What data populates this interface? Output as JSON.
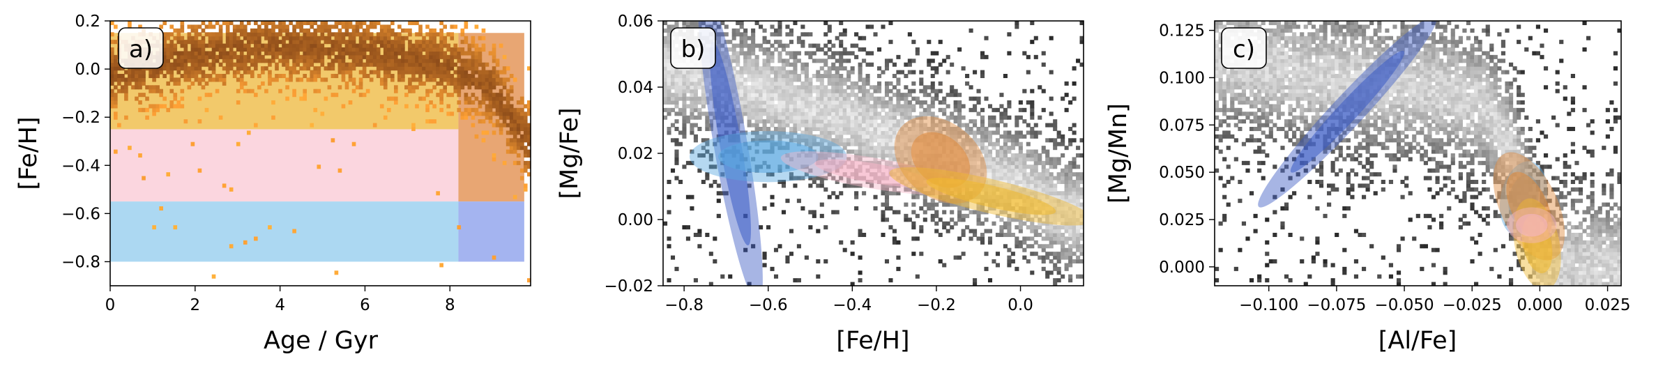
{
  "chart_data": [
    {
      "type": "heatmap",
      "panel_label": "a)",
      "xlabel": "Age / Gyr",
      "ylabel": "[Fe/H]",
      "xlim": [
        0,
        9.9
      ],
      "ylim": [
        -0.9,
        0.2
      ],
      "xticks": [
        "0",
        "2",
        "4",
        "6",
        "8"
      ],
      "yticks": [
        "0.2",
        "0.0",
        "−0.2",
        "−0.4",
        "−0.6",
        "−0.8"
      ],
      "xtick_values": [
        0,
        2,
        4,
        6,
        8
      ],
      "ytick_values": [
        0.2,
        0.0,
        -0.2,
        -0.4,
        -0.6,
        -0.8
      ],
      "grid": false,
      "regions": [
        {
          "color": "#f2c96b",
          "x": [
            0,
            8.2
          ],
          "y": [
            -0.25,
            0.15
          ]
        },
        {
          "color": "#fbd6df",
          "x": [
            0,
            8.2
          ],
          "y": [
            -0.55,
            -0.25
          ]
        },
        {
          "color": "#acd8f2",
          "x": [
            0,
            8.2
          ],
          "y": [
            -0.8,
            -0.55
          ]
        },
        {
          "color": "#e8a673",
          "x": [
            8.2,
            9.75
          ],
          "y": [
            -0.55,
            0.15
          ]
        },
        {
          "color": "#a4b4f0",
          "x": [
            8.2,
            9.75
          ],
          "y": [
            -0.8,
            -0.55
          ]
        }
      ],
      "density_ridge": [
        {
          "x": 0.0,
          "y": -0.02
        },
        {
          "x": 2.0,
          "y": 0.06
        },
        {
          "x": 4.0,
          "y": 0.1
        },
        {
          "x": 6.0,
          "y": 0.08
        },
        {
          "x": 8.0,
          "y": 0.02
        },
        {
          "x": 9.0,
          "y": -0.08
        },
        {
          "x": 9.8,
          "y": -0.3
        }
      ]
    },
    {
      "type": "heatmap",
      "panel_label": "b)",
      "xlabel": "[Fe/H]",
      "ylabel": "[Mg/Fe]",
      "xlim": [
        -0.85,
        0.15
      ],
      "ylim": [
        -0.02,
        0.06
      ],
      "xticks": [
        "−0.8",
        "−0.6",
        "−0.4",
        "−0.2",
        "0.0"
      ],
      "yticks": [
        "0.06",
        "0.04",
        "0.02",
        "0.00",
        "−0.02"
      ],
      "xtick_values": [
        -0.8,
        -0.6,
        -0.4,
        -0.2,
        0.0
      ],
      "ytick_values": [
        0.06,
        0.04,
        0.02,
        0.0,
        -0.02
      ],
      "grid": false,
      "density_ridge": [
        {
          "x": -0.8,
          "y": 0.045
        },
        {
          "x": -0.6,
          "y": 0.038
        },
        {
          "x": -0.4,
          "y": 0.03
        },
        {
          "x": -0.2,
          "y": 0.02
        },
        {
          "x": 0.0,
          "y": 0.01
        },
        {
          "x": 0.12,
          "y": 0.001
        }
      ],
      "populations": [
        {
          "color": "#3b5bc4",
          "center": [
            -0.69,
            0.023
          ],
          "sx": 0.035,
          "sy": 0.022,
          "rho": -0.85
        },
        {
          "color": "#5aa8e0",
          "center": [
            -0.6,
            0.019
          ],
          "sx": 0.085,
          "sy": 0.0035,
          "rho": 0.0
        },
        {
          "color": "#f5b6c8",
          "center": [
            -0.35,
            0.014
          ],
          "sx": 0.1,
          "sy": 0.003,
          "rho": -0.7
        },
        {
          "color": "#e08a3c",
          "center": [
            -0.19,
            0.018
          ],
          "sx": 0.05,
          "sy": 0.006,
          "rho": -0.3
        },
        {
          "color": "#f0b92e",
          "center": [
            -0.07,
            0.007
          ],
          "sx": 0.11,
          "sy": 0.004,
          "rho": -0.8
        }
      ]
    },
    {
      "type": "heatmap",
      "panel_label": "c)",
      "xlabel": "[Al/Fe]",
      "ylabel": "[Mg/Mn]",
      "xlim": [
        -0.12,
        0.03
      ],
      "ylim": [
        -0.01,
        0.13
      ],
      "xticks": [
        "−0.100",
        "−0.075",
        "−0.050",
        "−0.025",
        "0.000",
        "0.025"
      ],
      "yticks": [
        "0.125",
        "0.100",
        "0.075",
        "0.050",
        "0.025",
        "0.000"
      ],
      "xtick_values": [
        -0.1,
        -0.075,
        -0.05,
        -0.025,
        0.0,
        0.025
      ],
      "ytick_values": [
        0.125,
        0.1,
        0.075,
        0.05,
        0.025,
        0.0
      ],
      "grid": false,
      "density_ridge": [
        {
          "x": -0.115,
          "y": 0.11
        },
        {
          "x": -0.08,
          "y": 0.1
        },
        {
          "x": -0.04,
          "y": 0.095
        },
        {
          "x": -0.02,
          "y": 0.085
        },
        {
          "x": -0.01,
          "y": 0.06
        },
        {
          "x": -0.004,
          "y": 0.03
        },
        {
          "x": 0.0,
          "y": 0.0
        }
      ],
      "populations": [
        {
          "color": "#3b5bc4",
          "center": [
            -0.071,
            0.082
          ],
          "sx": 0.015,
          "sy": 0.023,
          "rho": 0.97
        },
        {
          "color": "#5aa8e0",
          "center": [
            -0.006,
            0.036
          ],
          "sx": 0.004,
          "sy": 0.009,
          "rho": 0.2
        },
        {
          "color": "#e08a3c",
          "center": [
            -0.004,
            0.032
          ],
          "sx": 0.006,
          "sy": 0.013,
          "rho": -0.5
        },
        {
          "color": "#f0b92e",
          "center": [
            -0.001,
            0.012
          ],
          "sx": 0.004,
          "sy": 0.011,
          "rho": -0.3
        },
        {
          "color": "#f5b6c8",
          "center": [
            -0.003,
            0.022
          ],
          "sx": 0.003,
          "sy": 0.006,
          "rho": 0.0
        }
      ]
    }
  ]
}
